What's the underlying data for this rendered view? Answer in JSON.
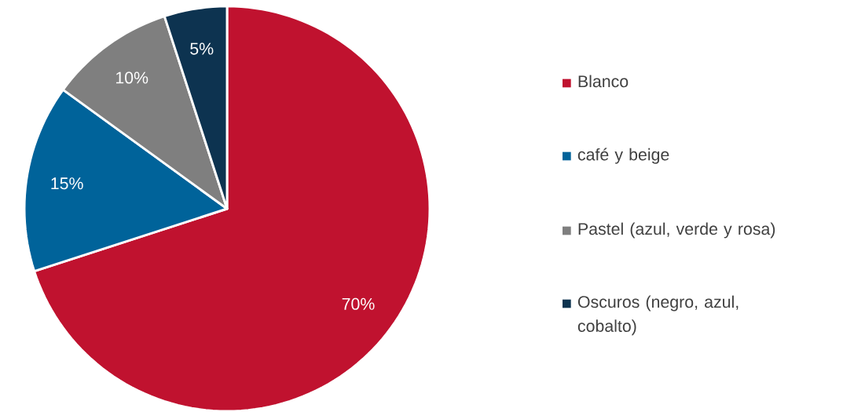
{
  "chart_data": {
    "type": "pie",
    "categories": [
      "Blanco",
      "café y beige",
      "Pastel (azul, verde y rosa)",
      "Oscuros (negro, azul, cobalto)"
    ],
    "values": [
      70,
      15,
      10,
      5
    ],
    "value_labels": [
      "70%",
      "15%",
      "10%",
      "5%"
    ],
    "colors": [
      "#c0122f",
      "#00639a",
      "#7f7f7f",
      "#0d3350"
    ],
    "legend": "right"
  }
}
